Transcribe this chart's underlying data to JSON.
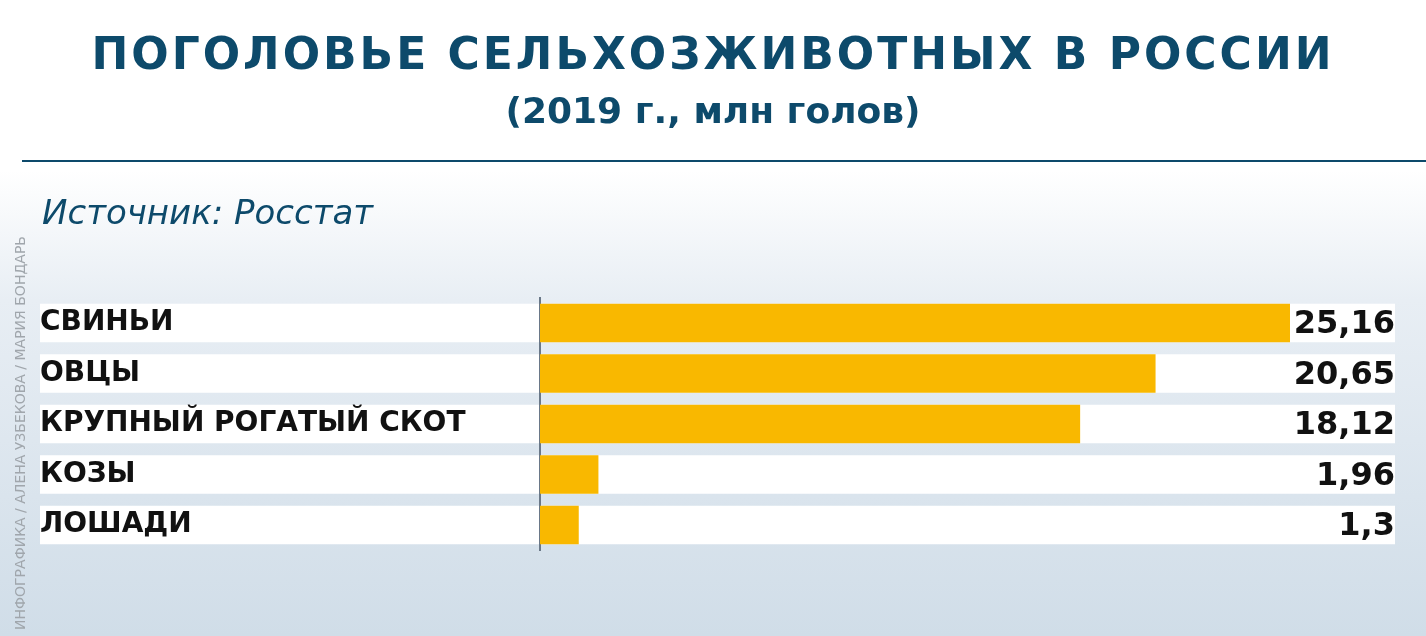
{
  "chart_data": {
    "type": "bar",
    "orientation": "horizontal",
    "title": "ПОГОЛОВЬЕ СЕЛЬХОЗЖИВОТНЫХ В РОССИИ",
    "subtitle": "(2019 г., млн голов)",
    "categories": [
      "СВИНЬИ",
      "ОВЦЫ",
      "КРУПНЫЙ РОГАТЫЙ СКОТ",
      "КОЗЫ",
      "ЛОШАДИ"
    ],
    "values": [
      25.16,
      20.65,
      18.12,
      1.96,
      1.3
    ],
    "value_labels": [
      "25,16",
      "20,65",
      "18,12",
      "1,96",
      "1,3"
    ],
    "color": "#f9b800",
    "annotations": [
      "Источник: Росстат",
      "ИНФОГРАФИКА / АЛЕНА УЗБЕКОВА / МАРИЯ БОНДАРЬ"
    ],
    "grid": false,
    "legend": false
  }
}
